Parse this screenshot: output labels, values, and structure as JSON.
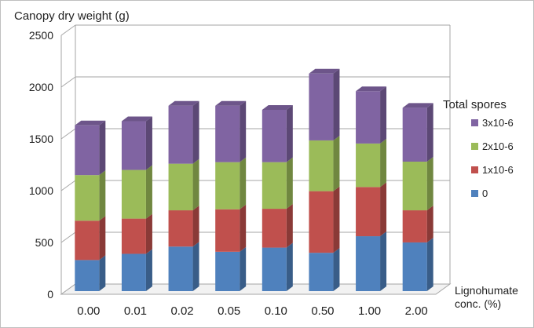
{
  "chart_data": {
    "type": "bar",
    "stacked": true,
    "three_d": true,
    "title": "Canopy dry weight (g)",
    "xlabel": "Lignohumate conc. (%)",
    "ylabel": "",
    "ylim": [
      0,
      2500
    ],
    "yticks": [
      0,
      500,
      1000,
      1500,
      2000,
      2500
    ],
    "grid": true,
    "legend_title": "Total spores",
    "legend_position": "right",
    "categories": [
      "0.00",
      "0.01",
      "0.02",
      "0.05",
      "0.10",
      "0.50",
      "1.00",
      "2.00"
    ],
    "series": [
      {
        "name": "0",
        "color": "#4f81bd",
        "values": [
          300,
          360,
          430,
          380,
          420,
          370,
          530,
          470
        ]
      },
      {
        "name": "1x10-6",
        "color": "#c0504d",
        "values": [
          380,
          340,
          350,
          410,
          375,
          595,
          475,
          310
        ]
      },
      {
        "name": "2x10-6",
        "color": "#9bbb59",
        "values": [
          440,
          470,
          450,
          455,
          450,
          490,
          420,
          470
        ]
      },
      {
        "name": "3x10-6",
        "color": "#8064a2",
        "values": [
          480,
          470,
          560,
          545,
          505,
          645,
          505,
          520
        ]
      }
    ]
  }
}
